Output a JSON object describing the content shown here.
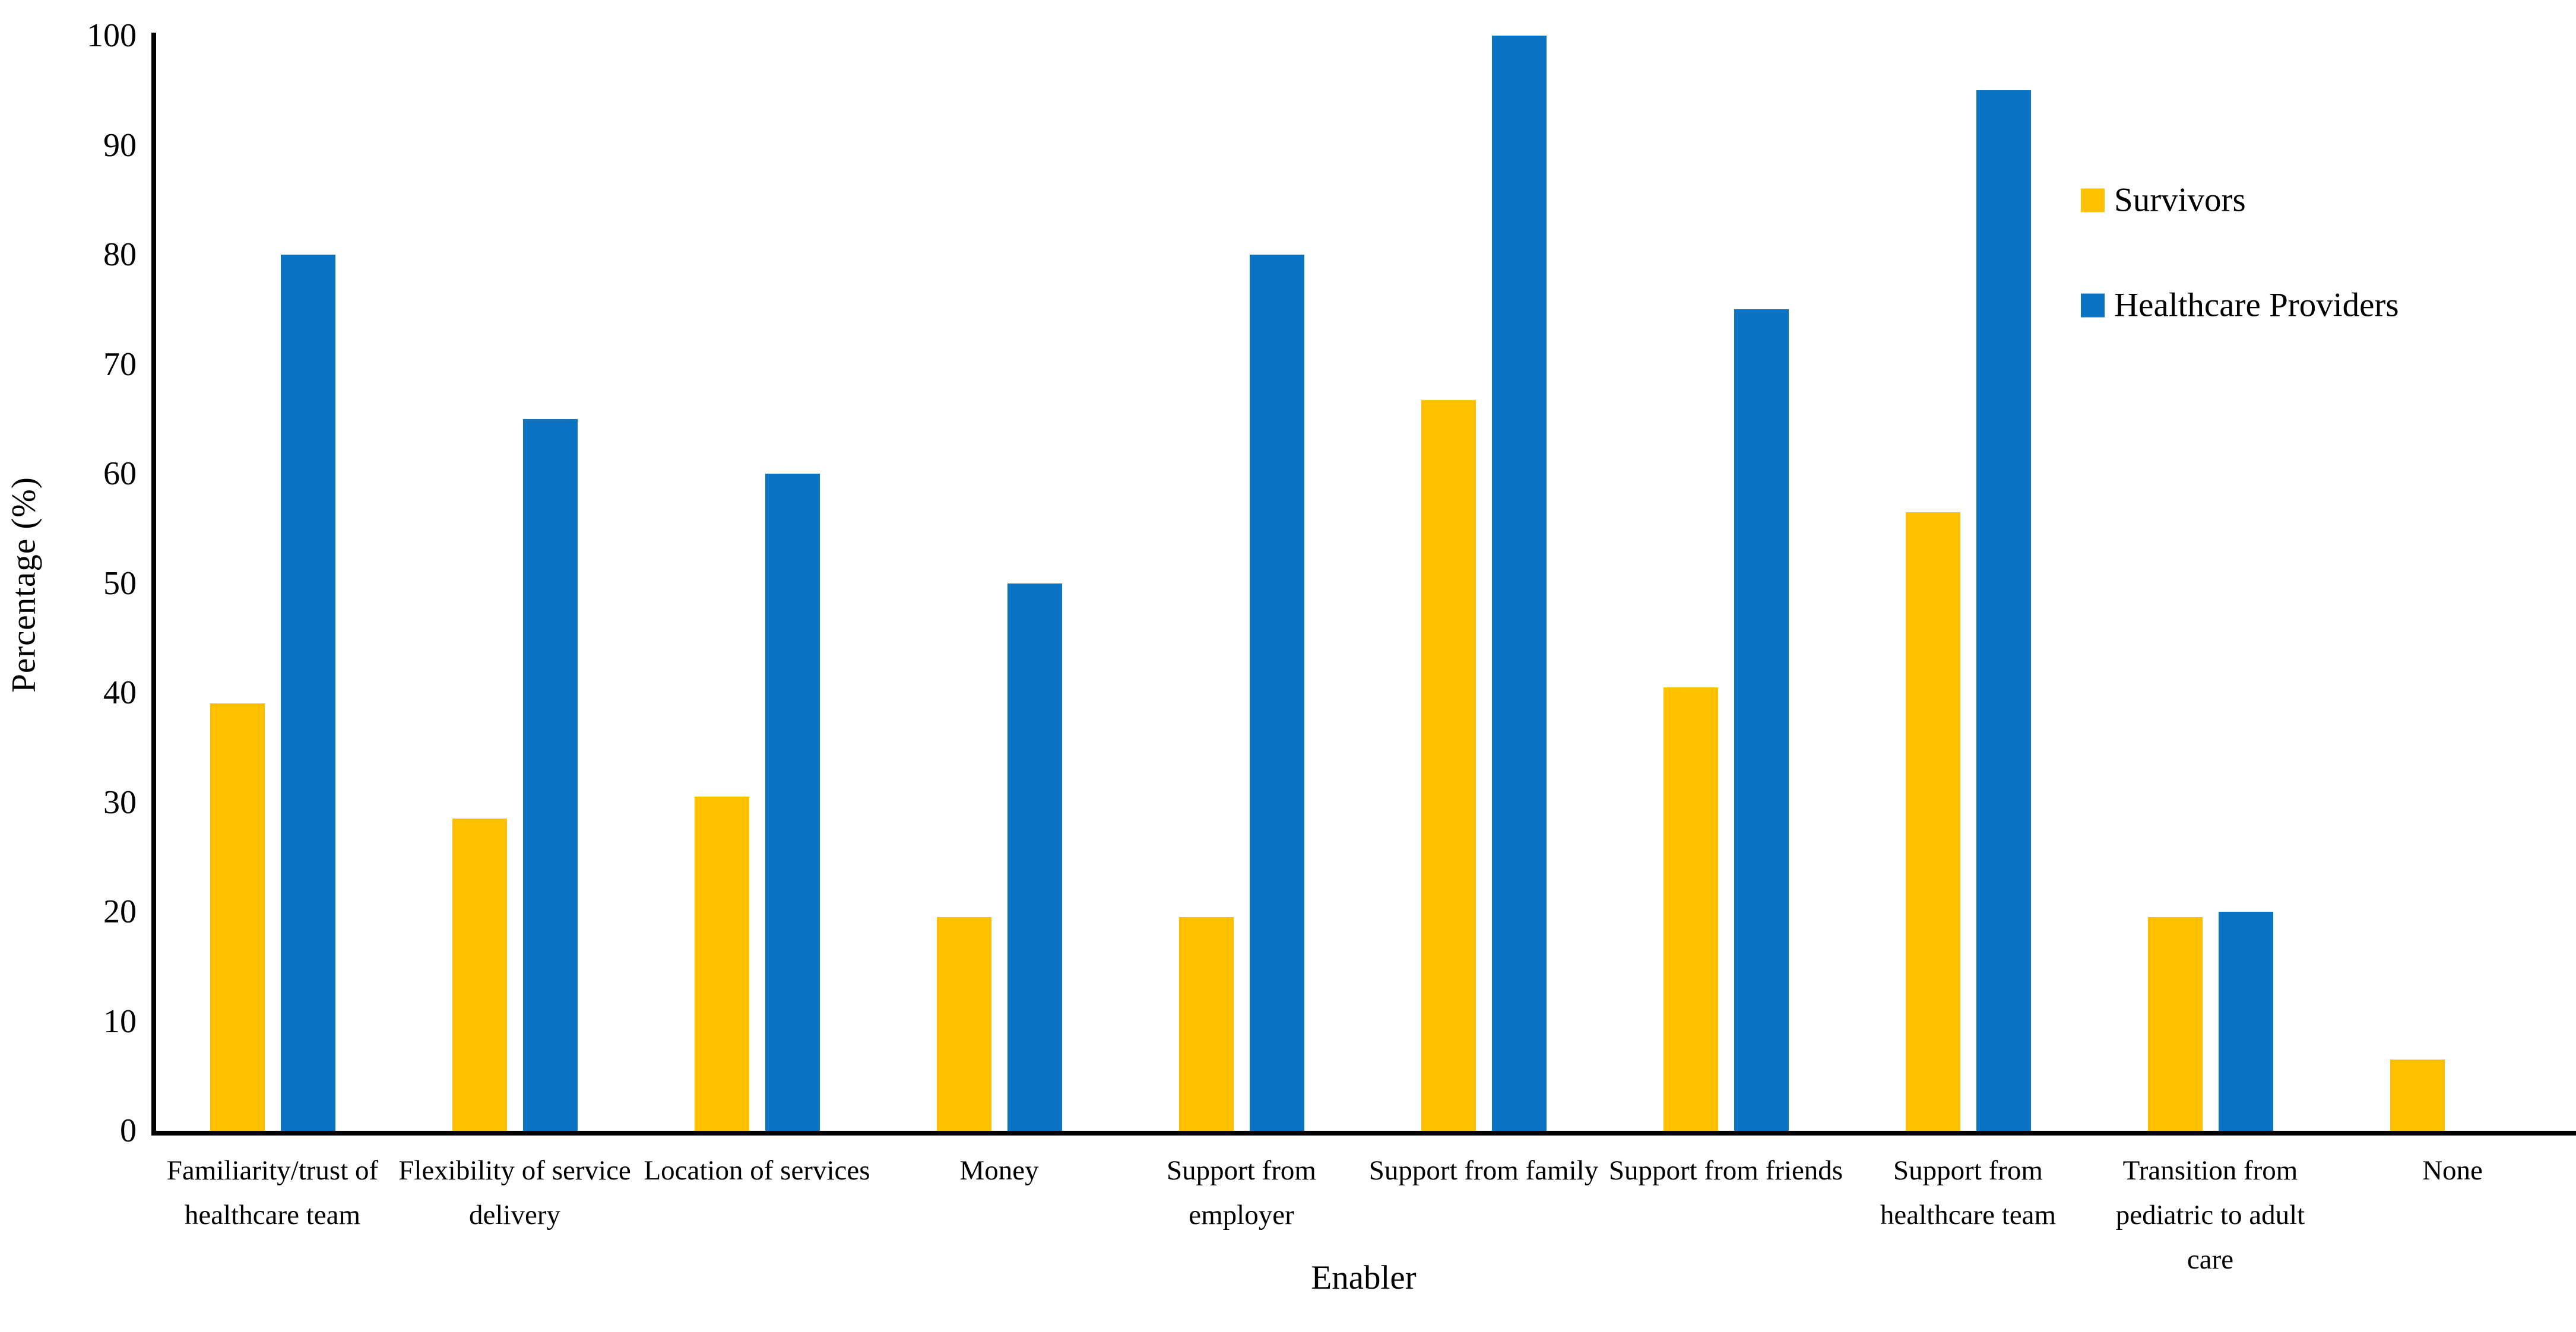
{
  "chart_data": {
    "type": "bar",
    "title": "",
    "xlabel": "Enabler",
    "ylabel": "Percentage (%)",
    "ylim": [
      0,
      100
    ],
    "ytick_step": 10,
    "yticks": [
      0,
      10,
      20,
      30,
      40,
      50,
      60,
      70,
      80,
      90,
      100
    ],
    "grid": false,
    "legend_position": "right",
    "background_color": "#FFFFFF",
    "axis_color": "#000000",
    "categories": [
      "Familiarity/trust of healthcare team",
      "Flexibility of service delivery",
      "Location of services",
      "Money",
      "Support from employer",
      "Support from family",
      "Support from friends",
      "Support from healthcare team",
      "Transition from pediatric to adult care",
      "None"
    ],
    "series": [
      {
        "name": "Survivors",
        "color": "#FFC000",
        "values": [
          39,
          28.5,
          30.5,
          19.5,
          19.5,
          66.7,
          40.5,
          56.5,
          19.5,
          6.5
        ]
      },
      {
        "name": "Healthcare Providers",
        "color": "#0A73C4",
        "values": [
          80,
          65,
          60,
          50,
          80,
          100,
          75,
          95,
          20,
          0
        ]
      }
    ]
  }
}
